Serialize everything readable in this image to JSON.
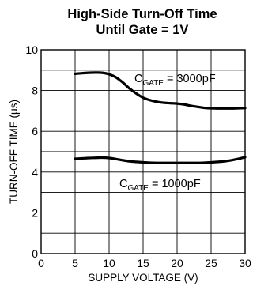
{
  "chart_data": {
    "type": "line",
    "title_lines": [
      "High-Side Turn-Off Time",
      "Until Gate = 1V"
    ],
    "xlabel": "SUPPLY VOLTAGE (V)",
    "ylabel": "TURN-OFF TIME (μs)",
    "xlim": [
      0,
      30
    ],
    "ylim": [
      0,
      10
    ],
    "xticks": [
      "0",
      "5",
      "10",
      "15",
      "20",
      "25",
      "30"
    ],
    "yticks": [
      "0",
      "2",
      "4",
      "6",
      "8",
      "10"
    ],
    "grid": true,
    "series": [
      {
        "label_main": "C",
        "label_sub": "GATE",
        "label_rest": " = 3000pF",
        "x": [
          5,
          6,
          7,
          8,
          9,
          10,
          11,
          12,
          13,
          14,
          15,
          16,
          17,
          18,
          19,
          20,
          21,
          22,
          23,
          24,
          25,
          26,
          27,
          28,
          29,
          30
        ],
        "y": [
          8.82,
          8.85,
          8.87,
          8.88,
          8.87,
          8.8,
          8.65,
          8.4,
          8.1,
          7.85,
          7.65,
          7.53,
          7.45,
          7.4,
          7.38,
          7.36,
          7.32,
          7.25,
          7.2,
          7.15,
          7.13,
          7.12,
          7.12,
          7.12,
          7.13,
          7.14
        ]
      },
      {
        "label_main": "C",
        "label_sub": "GATE",
        "label_rest": " = 1000pF",
        "x": [
          5,
          6,
          7,
          8,
          9,
          10,
          11,
          12,
          13,
          14,
          15,
          16,
          17,
          18,
          19,
          20,
          21,
          22,
          23,
          24,
          25,
          26,
          27,
          28,
          29,
          30
        ],
        "y": [
          4.65,
          4.67,
          4.69,
          4.7,
          4.71,
          4.69,
          4.64,
          4.58,
          4.53,
          4.5,
          4.48,
          4.46,
          4.45,
          4.45,
          4.45,
          4.45,
          4.45,
          4.45,
          4.45,
          4.46,
          4.48,
          4.5,
          4.53,
          4.58,
          4.65,
          4.73
        ]
      }
    ]
  }
}
